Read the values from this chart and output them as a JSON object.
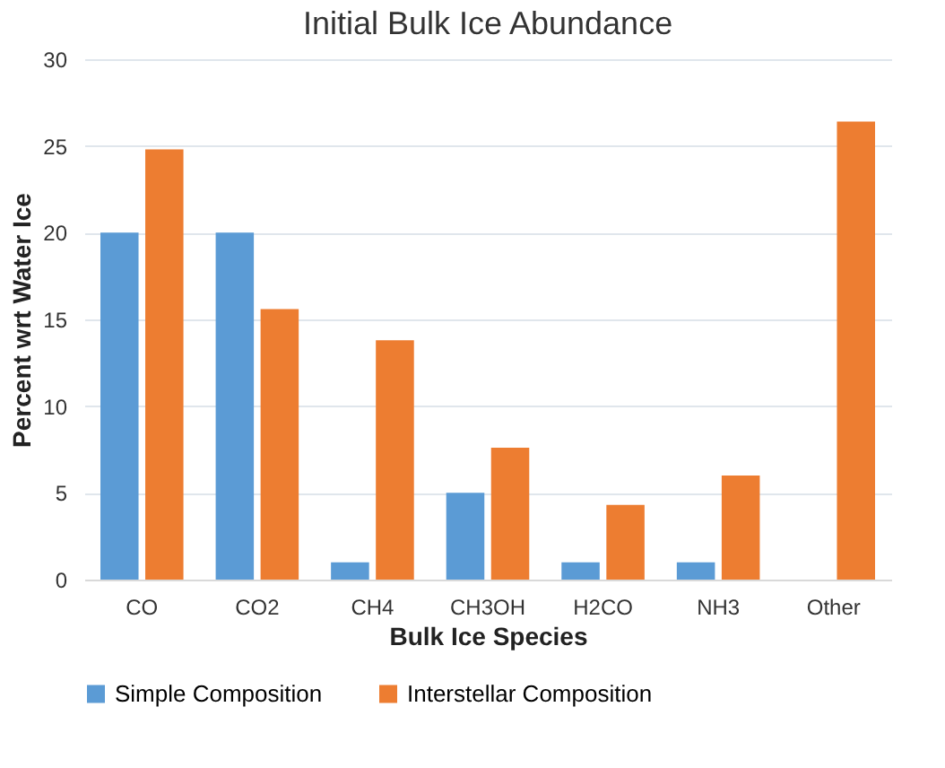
{
  "chart_data": {
    "type": "bar",
    "title": "Initial Bulk Ice Abundance",
    "xlabel": "Bulk Ice Species",
    "ylabel": "Percent wrt Water Ice",
    "categories": [
      "CO",
      "CO2",
      "CH4",
      "CH3OH",
      "H2CO",
      "NH3",
      "Other"
    ],
    "series": [
      {
        "name": "Simple Composition",
        "color": "#5b9bd5",
        "values": [
          20,
          20,
          1,
          5,
          1,
          1,
          null
        ]
      },
      {
        "name": "Interstellar Composition",
        "color": "#ed7d31",
        "values": [
          24.8,
          15.6,
          13.8,
          7.6,
          4.3,
          6.0,
          26.4
        ]
      }
    ],
    "ylim": [
      0,
      30
    ],
    "yticks": [
      0,
      5,
      10,
      15,
      20,
      25,
      30
    ],
    "grid": "y",
    "legend": "bottom"
  }
}
